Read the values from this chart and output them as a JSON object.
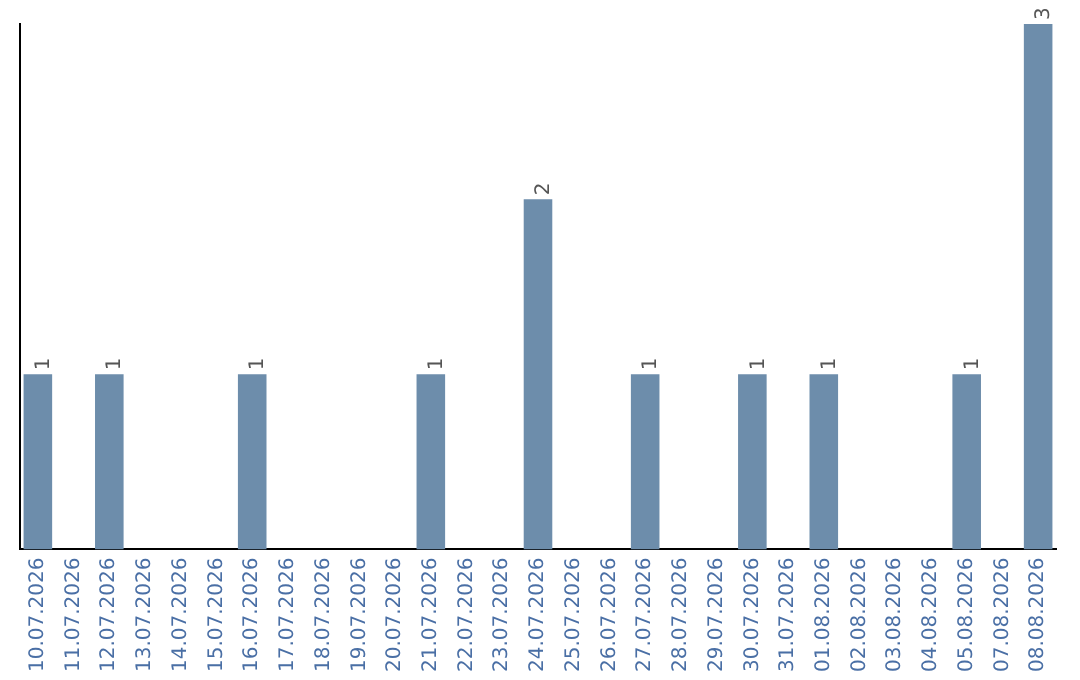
{
  "chart_data": {
    "type": "bar",
    "categories": [
      "10.07.2026",
      "11.07.2026",
      "12.07.2026",
      "13.07.2026",
      "14.07.2026",
      "15.07.2026",
      "16.07.2026",
      "17.07.2026",
      "18.07.2026",
      "19.07.2026",
      "20.07.2026",
      "21.07.2026",
      "22.07.2026",
      "23.07.2026",
      "24.07.2026",
      "25.07.2026",
      "26.07.2026",
      "27.07.2026",
      "28.07.2026",
      "29.07.2026",
      "30.07.2026",
      "31.07.2026",
      "01.08.2026",
      "02.08.2026",
      "03.08.2026",
      "04.08.2026",
      "05.08.2026",
      "07.08.2026",
      "08.08.2026"
    ],
    "values": [
      1,
      0,
      1,
      0,
      0,
      0,
      1,
      0,
      0,
      0,
      0,
      1,
      0,
      0,
      2,
      0,
      0,
      1,
      0,
      0,
      1,
      0,
      1,
      0,
      0,
      0,
      1,
      0,
      3
    ],
    "value_labels": [
      "1",
      null,
      "1",
      null,
      null,
      null,
      "1",
      null,
      null,
      null,
      null,
      "1",
      null,
      null,
      "2",
      null,
      null,
      "1",
      null,
      null,
      "1",
      null,
      "1",
      null,
      null,
      null,
      "1",
      null,
      "3"
    ],
    "color": "#6d8dab",
    "ylim": [
      0,
      3.0
    ],
    "tick_labels": "x",
    "grid": false,
    "legend": false
  }
}
